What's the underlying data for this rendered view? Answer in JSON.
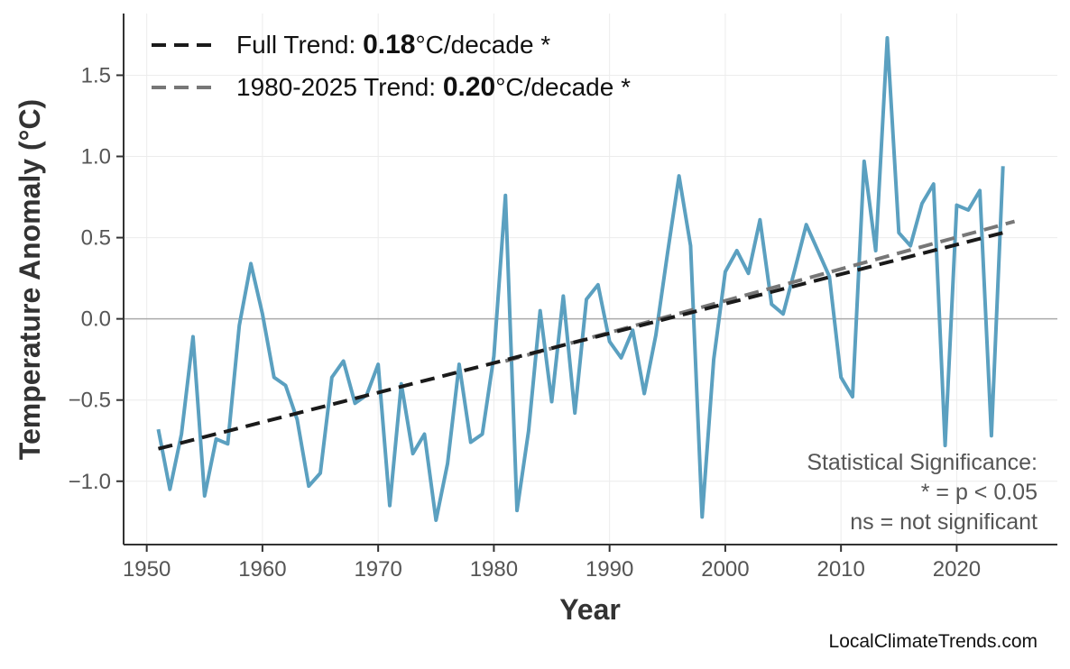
{
  "chart_data": {
    "type": "line",
    "title": "",
    "xlabel": "Year",
    "ylabel": "Temperature Anomaly (°C)",
    "xlim": [
      1948,
      2028.7
    ],
    "ylim": [
      -1.39,
      1.88
    ],
    "grid": true,
    "x_ticks": [
      1950,
      1960,
      1970,
      1980,
      1990,
      2000,
      2010,
      2020
    ],
    "y_ticks": [
      -1.0,
      -0.5,
      0.0,
      0.5,
      1.0,
      1.5
    ],
    "y_tick_labels": [
      "−1.0",
      "−0.5",
      "0.0",
      "0.5",
      "1.0",
      "1.5"
    ],
    "series": [
      {
        "color": "#5ba0c0",
        "x": [
          1951,
          1952,
          1953,
          1954,
          1955,
          1956,
          1957,
          1958,
          1959,
          1960,
          1961,
          1962,
          1963,
          1964,
          1965,
          1966,
          1967,
          1968,
          1969,
          1970,
          1971,
          1972,
          1973,
          1974,
          1975,
          1976,
          1977,
          1978,
          1979,
          1980,
          1981,
          1982,
          1983,
          1984,
          1985,
          1986,
          1987,
          1988,
          1989,
          1990,
          1991,
          1992,
          1993,
          1994,
          1995,
          1996,
          1997,
          1998,
          1999,
          2000,
          2001,
          2002,
          2003,
          2004,
          2005,
          2006,
          2007,
          2008,
          2009,
          2010,
          2011,
          2012,
          2013,
          2014,
          2015,
          2016,
          2017,
          2018,
          2019,
          2020,
          2021,
          2022,
          2023,
          2024
        ],
        "values": [
          -0.68,
          -1.05,
          -0.71,
          -0.11,
          -1.09,
          -0.74,
          -0.77,
          -0.04,
          0.34,
          0.03,
          -0.36,
          -0.41,
          -0.62,
          -1.03,
          -0.95,
          -0.36,
          -0.26,
          -0.52,
          -0.47,
          -0.28,
          -1.15,
          -0.4,
          -0.83,
          -0.71,
          -1.24,
          -0.89,
          -0.28,
          -0.76,
          -0.71,
          -0.23,
          0.76,
          -1.18,
          -0.69,
          0.05,
          -0.51,
          0.14,
          -0.58,
          0.12,
          0.21,
          -0.14,
          -0.24,
          -0.07,
          -0.46,
          -0.1,
          0.4,
          0.88,
          0.45,
          -1.22,
          -0.25,
          0.29,
          0.42,
          0.28,
          0.61,
          0.09,
          0.03,
          0.3,
          0.58,
          0.42,
          0.26,
          -0.36,
          -0.48,
          0.97,
          0.42,
          1.73,
          0.53,
          0.45,
          0.71,
          0.83,
          -0.78,
          0.7,
          0.67,
          0.79,
          -0.72,
          0.94
        ]
      }
    ],
    "trends": [
      {
        "label_prefix": "Full Trend: ",
        "value": "0.18",
        "label_suffix": "°C/decade *",
        "color": "#1a1a1a",
        "x": [
          1951,
          2024
        ],
        "y": [
          -0.8,
          0.53
        ]
      },
      {
        "label_prefix": "1980-2025 Trend: ",
        "value": "0.20",
        "label_suffix": "°C/decade *",
        "color": "#777777",
        "x": [
          1981,
          2025
        ],
        "y": [
          -0.26,
          0.6
        ]
      }
    ],
    "legend_position": "top-left",
    "annotation": [
      "Statistical Significance:",
      "* = p < 0.05",
      "ns = not significant"
    ],
    "annotation_position": "bottom-right",
    "credit": "LocalClimateTrends.com"
  }
}
